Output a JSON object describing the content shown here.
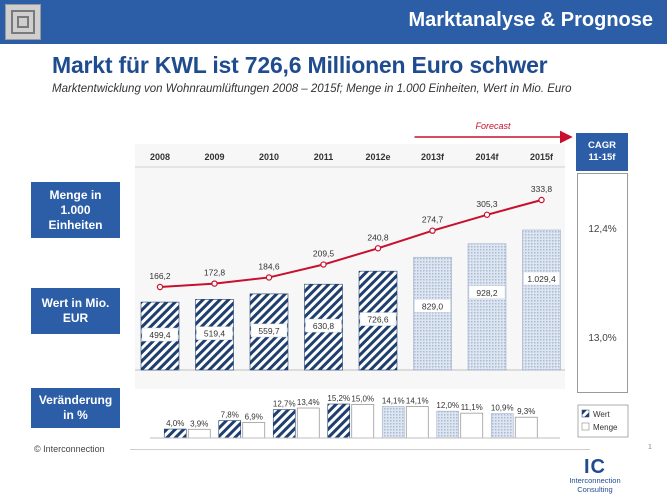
{
  "header": {
    "title": "Marktanalyse & Prognose"
  },
  "headline": "Markt für KWL ist 726,6 Millionen Euro schwer",
  "subtitle": "Marktentwicklung von Wohnraumlüftungen 2008 – 2015f; Menge in 1.000 Einheiten, Wert in Mio. Euro",
  "row_labels": {
    "menge": "Menge in 1.000 Einheiten",
    "wert": "Wert in Mio. EUR",
    "veraenderung": "Veränderung in %"
  },
  "cagr": {
    "header": "CAGR\n11-15f",
    "menge": "12,4%",
    "wert": "13,0%"
  },
  "colors": {
    "brand": "#2c5ea8",
    "line": "#c8102e",
    "forecast_fill": "#d9e2ee",
    "hatch": "#1f3f6e"
  },
  "chart_data": {
    "type": "bar",
    "title": "Marktentwicklung von Wohnraumlüftungen 2008 – 2015f",
    "categories": [
      "2008",
      "2009",
      "2010",
      "2011",
      "2012e",
      "2013f",
      "2014f",
      "2015f"
    ],
    "forecast_label": "Forecast",
    "forecast_from_index": 5,
    "series": [
      {
        "name": "Wert",
        "unit": "Mio. EUR",
        "type": "bar",
        "values": [
          499.4,
          519.4,
          559.7,
          630.8,
          726.6,
          829.0,
          928.2,
          1029.4
        ],
        "labels": [
          "499,4",
          "519,4",
          "559,7",
          "630,8",
          "726,6",
          "829,0",
          "928,2",
          "1.029,4"
        ]
      },
      {
        "name": "Menge",
        "unit": "1.000 Einheiten",
        "type": "line",
        "values": [
          166.2,
          172.8,
          184.6,
          209.5,
          240.8,
          274.7,
          305.3,
          333.8
        ],
        "labels": [
          "166,2",
          "172,8",
          "184,6",
          "209,5",
          "240,8",
          "274,7",
          "305,3",
          "333,8"
        ]
      }
    ],
    "change_pct": {
      "legend": [
        "Wert",
        "Menge"
      ],
      "wert": [
        4.0,
        7.8,
        12.7,
        15.2,
        14.1,
        12.0,
        10.9
      ],
      "menge": [
        3.9,
        6.9,
        13.4,
        15.0,
        14.1,
        11.1,
        9.3
      ],
      "wert_labels": [
        "4,0%",
        "7,8%",
        "12,7%",
        "15,2%",
        "14,1%",
        "12,0%",
        "10,9%"
      ],
      "menge_labels": [
        "3,9%",
        "6,9%",
        "13,4%",
        "15,0%",
        "14,1%",
        "11,1%",
        "9,3%"
      ]
    }
  },
  "footer": {
    "copyright": "© Interconnection",
    "logo_mark": "IC",
    "logo_line1": "Interconnection",
    "logo_line2": "Consulting",
    "page": "1"
  }
}
